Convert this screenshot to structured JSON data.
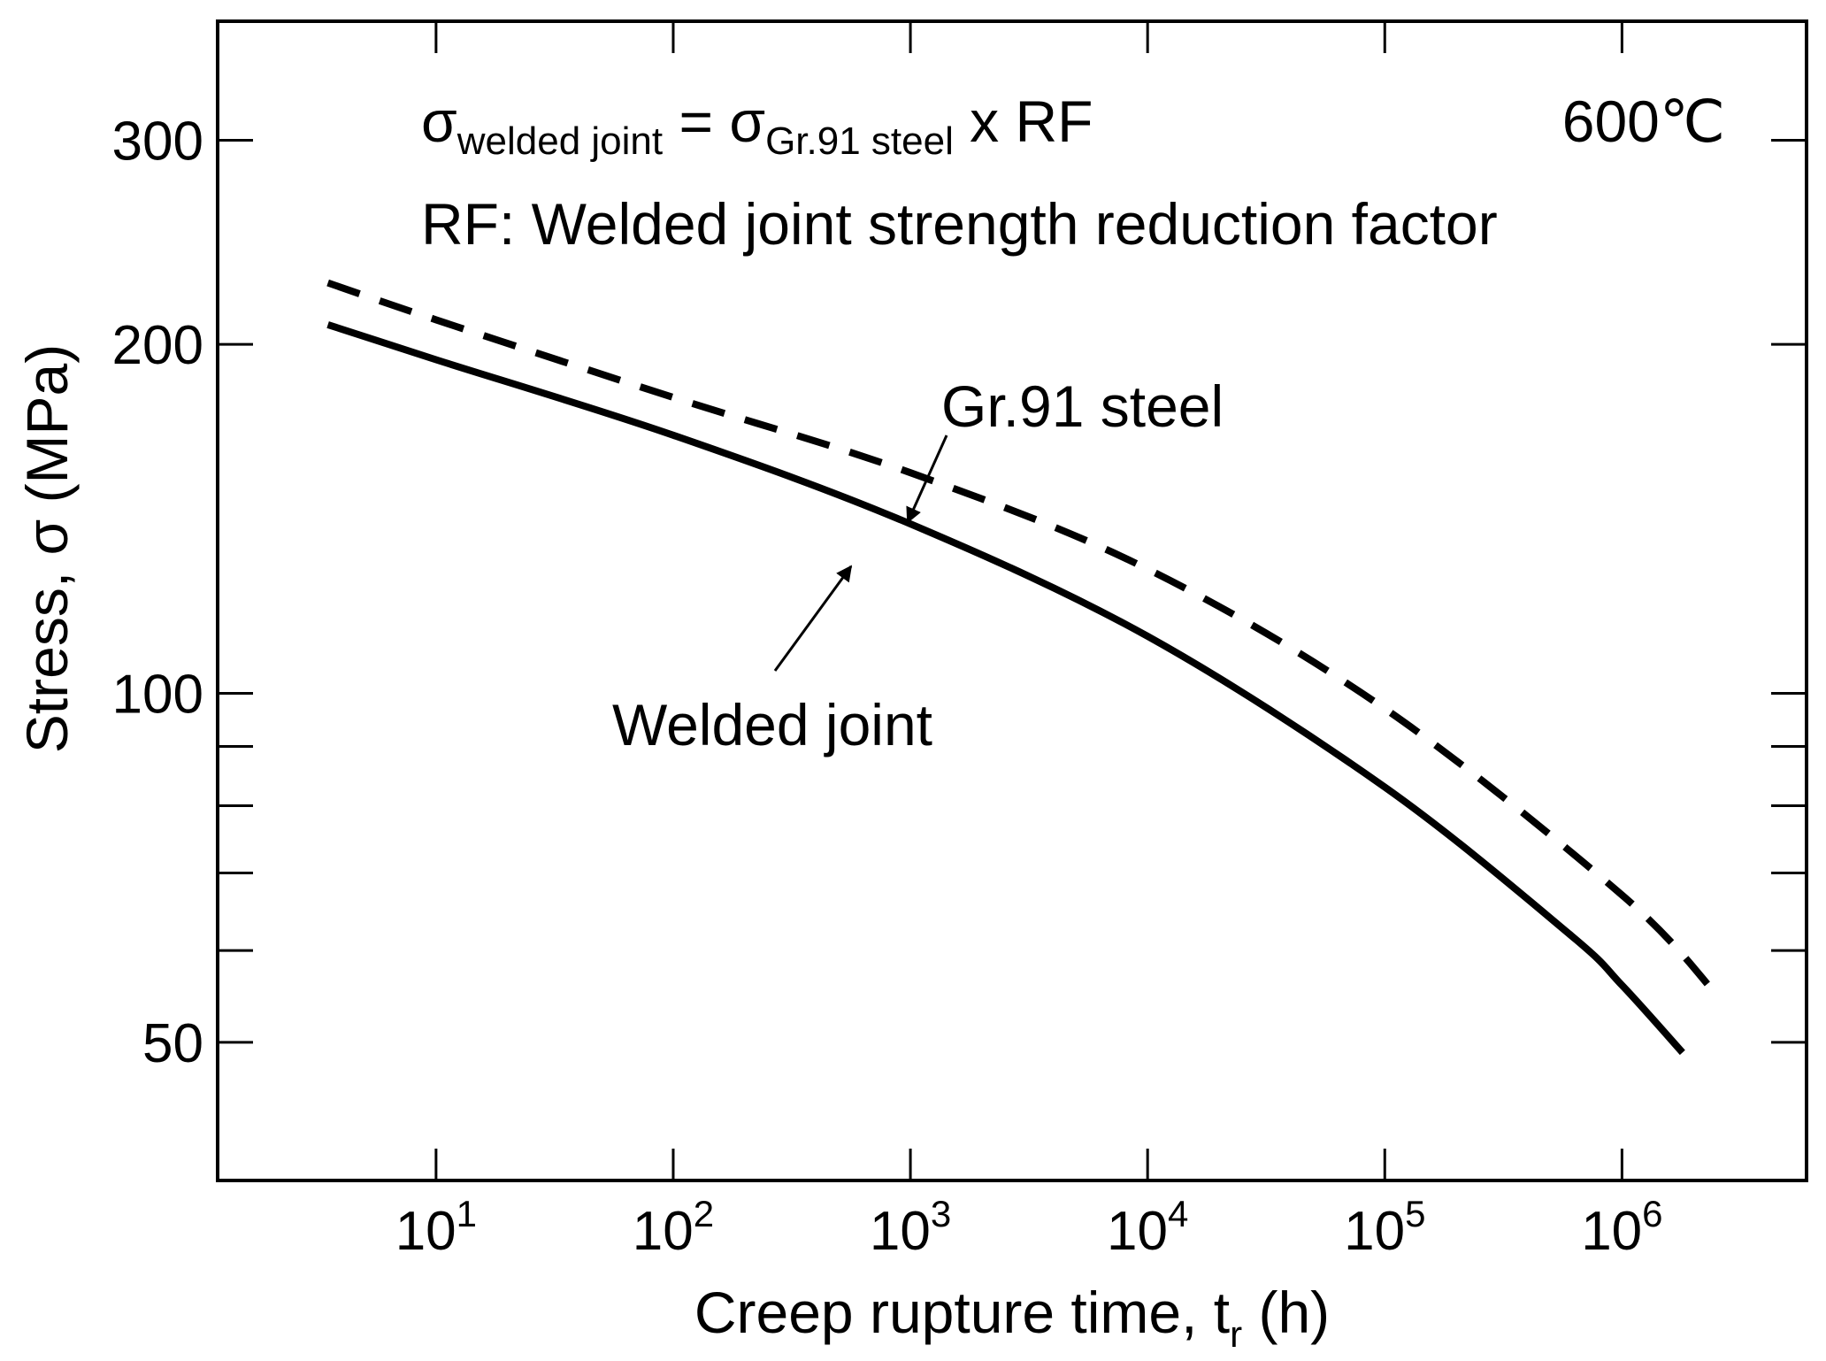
{
  "chart_data": {
    "type": "line",
    "title": "",
    "xlabel": {
      "main": "Creep rupture time, t",
      "sub": "r",
      "unit": " (h)"
    },
    "ylabel": "Stress, σ (MPa)",
    "xscale": "log",
    "yscale": "log",
    "xlim": [
      1.2,
      6000000
    ],
    "ylim": [
      38,
      380
    ],
    "x_ticks": [
      {
        "value": 10,
        "base": "10",
        "exp": "1"
      },
      {
        "value": 100,
        "base": "10",
        "exp": "2"
      },
      {
        "value": 1000,
        "base": "10",
        "exp": "3"
      },
      {
        "value": 10000,
        "base": "10",
        "exp": "4"
      },
      {
        "value": 100000,
        "base": "10",
        "exp": "5"
      },
      {
        "value": 1000000,
        "base": "10",
        "exp": "6"
      }
    ],
    "y_major_ticks": [
      {
        "value": 50,
        "label": "50"
      },
      {
        "value": 100,
        "label": "100"
      },
      {
        "value": 200,
        "label": "200"
      },
      {
        "value": 300,
        "label": "300"
      }
    ],
    "y_minor_ticks": [
      60,
      70,
      80,
      90
    ],
    "series": [
      {
        "name": "Gr.91 steel",
        "style": "dashed",
        "points": [
          [
            3.5,
            226
          ],
          [
            10,
            210
          ],
          [
            100,
            180
          ],
          [
            1000,
            155
          ],
          [
            10000,
            128
          ],
          [
            100000,
            97
          ],
          [
            1000000,
            67
          ],
          [
            2500000,
            55
          ]
        ]
      },
      {
        "name": "Welded joint",
        "style": "solid",
        "points": [
          [
            3.5,
            208
          ],
          [
            10,
            194
          ],
          [
            100,
            167
          ],
          [
            1000,
            140
          ],
          [
            10000,
            112
          ],
          [
            100000,
            83
          ],
          [
            600000,
            62
          ],
          [
            1000000,
            56
          ],
          [
            1800000,
            49
          ]
        ]
      }
    ],
    "annotations": {
      "formula": {
        "sigma": "σ",
        "sub1": "welded joint",
        "eq": " = ",
        "sub2": "Gr.91 steel",
        "tail": " x RF"
      },
      "rf_definition": "RF: Welded joint strength reduction factor",
      "temperature": "600℃",
      "label_gr91": "Gr.91 steel",
      "label_welded": "Welded joint"
    },
    "grid": false,
    "legend": "none"
  }
}
